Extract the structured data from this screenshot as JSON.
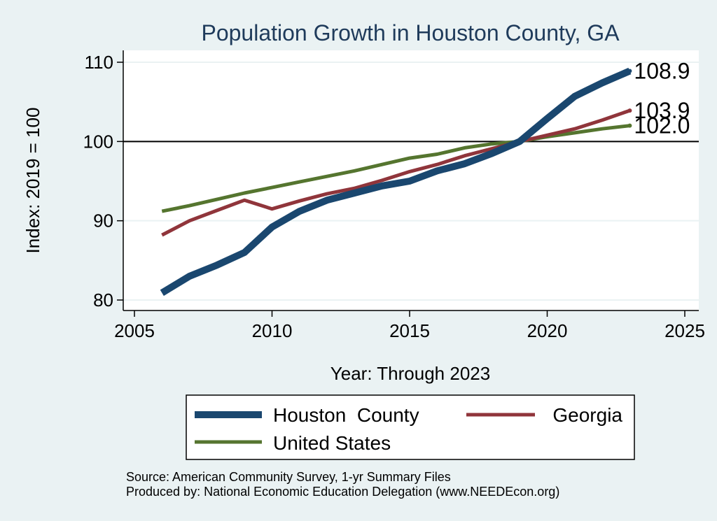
{
  "chart_data": {
    "type": "line",
    "title": "Population Growth in Houston County, GA",
    "xlabel": "Year: Through 2023",
    "ylabel": "Index: 2019 = 100",
    "xlim": [
      2005,
      2025
    ],
    "ylim": [
      79,
      111
    ],
    "xticks": [
      "2005",
      "2010",
      "2015",
      "2020",
      "2025"
    ],
    "yticks": [
      "80",
      "90",
      "100",
      "110"
    ],
    "reference_line": 100,
    "x": [
      2006,
      2007,
      2008,
      2009,
      2010,
      2011,
      2012,
      2013,
      2014,
      2015,
      2016,
      2017,
      2018,
      2019,
      2020,
      2021,
      2022,
      2023
    ],
    "series": [
      {
        "name": "Houston  County",
        "color": "#1a476f",
        "values": [
          80.9,
          83.0,
          84.4,
          86.0,
          89.2,
          91.2,
          92.6,
          93.5,
          94.4,
          95.0,
          96.3,
          97.2,
          98.5,
          100.0,
          102.9,
          105.7,
          107.4,
          108.9
        ],
        "end_label": "108.9"
      },
      {
        "name": "Georgia",
        "color": "#90353b",
        "values": [
          88.2,
          90.0,
          91.3,
          92.6,
          91.5,
          92.5,
          93.4,
          94.1,
          95.1,
          96.2,
          97.1,
          98.2,
          99.1,
          100.0,
          100.8,
          101.6,
          102.7,
          103.9
        ],
        "end_label": "103.9"
      },
      {
        "name": "United States",
        "color": "#55752f",
        "values": [
          91.2,
          91.9,
          92.7,
          93.5,
          94.2,
          94.9,
          95.6,
          96.3,
          97.1,
          97.9,
          98.4,
          99.2,
          99.7,
          100.0,
          100.6,
          101.1,
          101.6,
          102.0
        ],
        "end_label": "102.0"
      }
    ],
    "legend": {
      "position": "bottom",
      "items": [
        "Houston  County",
        "Georgia",
        "United States"
      ]
    }
  },
  "notes": {
    "source": "Source: American Community Survey, 1-yr Summary Files",
    "produced": "Produced by: National Economic Education Delegation (www.NEEDEcon.org)"
  }
}
